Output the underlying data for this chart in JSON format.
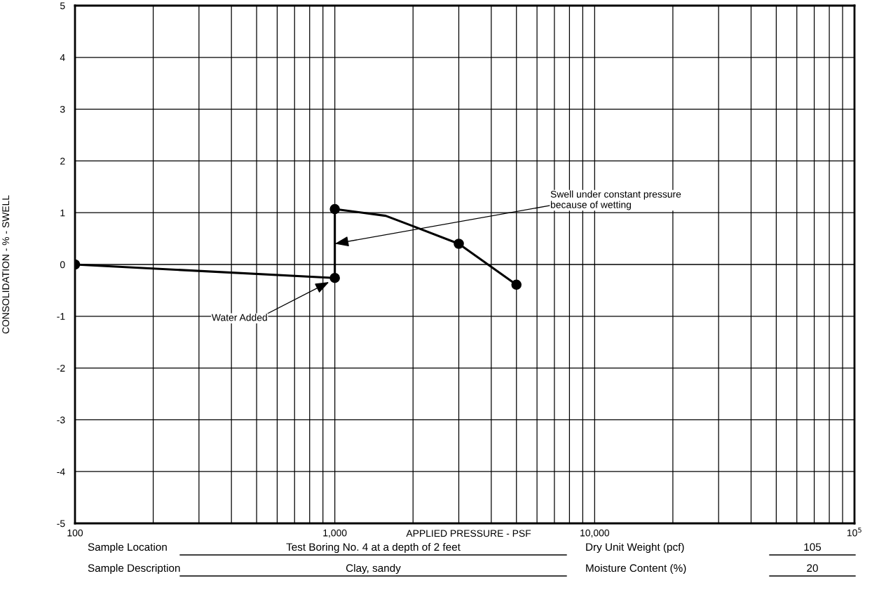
{
  "chart_data": {
    "type": "line",
    "xlabel": "APPLIED PRESSURE - PSF",
    "ylabel": "CONSOLIDATION - % - SWELL",
    "log": "x",
    "xlim": [
      100,
      100000
    ],
    "ylim": [
      -5,
      5
    ],
    "xticks": [
      {
        "value": 100,
        "label": "100"
      },
      {
        "value": 1000,
        "label": "1,000"
      },
      {
        "value": 10000,
        "label": "10,000"
      },
      {
        "value": 100000,
        "label": "10$^{5}$"
      }
    ],
    "yticks": [
      -5,
      -4,
      -3,
      -2,
      -1,
      0,
      1,
      2,
      3,
      4,
      5
    ],
    "grid": true,
    "series": [
      {
        "color": "#000000",
        "marker": "none",
        "x": [
          100,
          1000,
          1000,
          1570,
          2000,
          3000,
          5000
        ],
        "values": [
          0,
          -0.26,
          1.07,
          0.94,
          0.74,
          0.4,
          -0.39
        ]
      },
      {
        "type": "scatter",
        "color": "#000000",
        "marker": "circle",
        "x": [
          100,
          1000,
          1000,
          3000,
          5000
        ],
        "values": [
          0,
          -0.26,
          1.07,
          0.4,
          -0.39
        ]
      }
    ],
    "annotations": [
      {
        "text": "Swell under constant pressure\nbecause of wetting",
        "x": 1000,
        "y": 0.4
      },
      {
        "text": "Water Added",
        "x": 950,
        "y": -0.34
      },
      "Sample Location",
      "Test Boring No. 4 at a depth of 2 feet",
      "Dry Unit Weight (pcf)",
      "105",
      "Sample Description",
      "Clay, sandy",
      "Moisture Content (%)",
      "20"
    ]
  }
}
